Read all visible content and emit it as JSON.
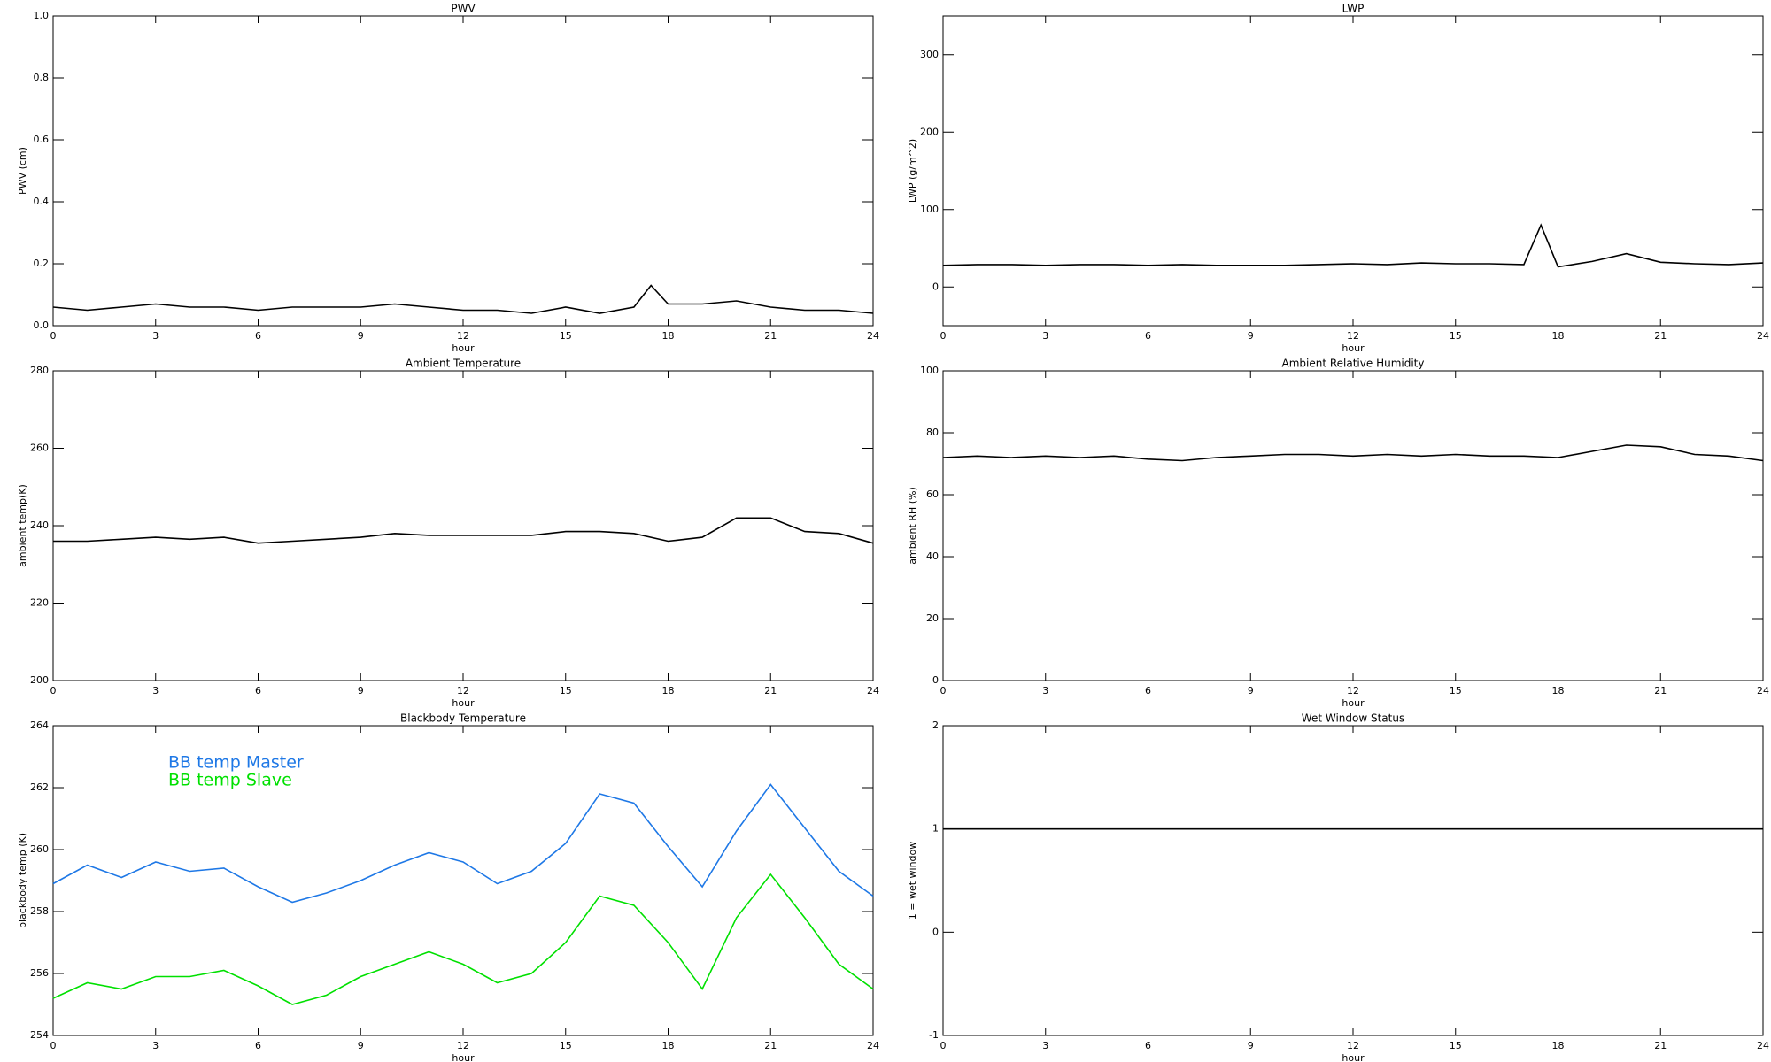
{
  "chart_data": [
    {
      "type": "line",
      "title": "PWV",
      "xlabel": "hour",
      "ylabel": "PWV (cm)",
      "x": [
        0,
        1,
        2,
        3,
        4,
        5,
        6,
        7,
        8,
        9,
        10,
        11,
        12,
        13,
        14,
        15,
        16,
        17,
        17.5,
        18,
        19,
        20,
        21,
        22,
        23,
        24
      ],
      "series": [
        {
          "color": "#000000",
          "values": [
            0.06,
            0.05,
            0.06,
            0.07,
            0.06,
            0.06,
            0.05,
            0.06,
            0.06,
            0.06,
            0.07,
            0.06,
            0.05,
            0.05,
            0.04,
            0.06,
            0.04,
            0.06,
            0.13,
            0.07,
            0.07,
            0.08,
            0.06,
            0.05,
            0.05,
            0.04
          ]
        }
      ],
      "xlim": [
        0,
        24
      ],
      "xticks": [
        0,
        3,
        6,
        9,
        12,
        15,
        18,
        21,
        24
      ],
      "ylim": [
        0,
        1
      ],
      "yticks": [
        {
          "value": 0,
          "label": "0.0"
        },
        0.2,
        0.4,
        0.6,
        0.8,
        {
          "value": 1,
          "label": "1.0"
        }
      ]
    },
    {
      "type": "line",
      "title": "LWP",
      "xlabel": "hour",
      "ylabel": "LWP (g/m^2)",
      "x": [
        0,
        1,
        2,
        3,
        4,
        5,
        6,
        7,
        8,
        9,
        10,
        11,
        12,
        13,
        14,
        15,
        16,
        17,
        17.5,
        18,
        19,
        20,
        21,
        22,
        23,
        24
      ],
      "series": [
        {
          "color": "#000000",
          "values": [
            28,
            29,
            29,
            28,
            29,
            29,
            28,
            29,
            28,
            28,
            28,
            29,
            30,
            29,
            31,
            30,
            30,
            29,
            80,
            26,
            33,
            43,
            32,
            30,
            29,
            31
          ]
        }
      ],
      "xlim": [
        0,
        24
      ],
      "xticks": [
        0,
        3,
        6,
        9,
        12,
        15,
        18,
        21,
        24
      ],
      "ylim": [
        -50,
        350
      ],
      "yticks": [
        0,
        100,
        200,
        300
      ]
    },
    {
      "type": "line",
      "title": "Ambient Temperature",
      "xlabel": "hour",
      "ylabel": "ambient temp(K)",
      "x": [
        0,
        1,
        2,
        3,
        4,
        5,
        6,
        7,
        8,
        9,
        10,
        11,
        12,
        13,
        14,
        15,
        16,
        17,
        18,
        19,
        20,
        21,
        22,
        23,
        24
      ],
      "series": [
        {
          "color": "#000000",
          "values": [
            236,
            236,
            236.5,
            237,
            236.5,
            237,
            235.5,
            236,
            236.5,
            237,
            238,
            237.5,
            237.5,
            237.5,
            237.5,
            238.5,
            238.5,
            238,
            236,
            237,
            242,
            242,
            238.5,
            238,
            235.5
          ]
        }
      ],
      "xlim": [
        0,
        24
      ],
      "xticks": [
        0,
        3,
        6,
        9,
        12,
        15,
        18,
        21,
        24
      ],
      "ylim": [
        200,
        280
      ],
      "yticks": [
        200,
        220,
        240,
        260,
        280
      ]
    },
    {
      "type": "line",
      "title": "Ambient Relative Humidity",
      "xlabel": "hour",
      "ylabel": "ambient RH (%)",
      "x": [
        0,
        1,
        2,
        3,
        4,
        5,
        6,
        7,
        8,
        9,
        10,
        11,
        12,
        13,
        14,
        15,
        16,
        17,
        18,
        19,
        20,
        21,
        22,
        23,
        24
      ],
      "series": [
        {
          "color": "#000000",
          "values": [
            72,
            72.5,
            72,
            72.5,
            72,
            72.5,
            71.5,
            71,
            72,
            72.5,
            73,
            73,
            72.5,
            73,
            72.5,
            73,
            72.5,
            72.5,
            72,
            74,
            76,
            75.5,
            73,
            72.5,
            71
          ]
        }
      ],
      "xlim": [
        0,
        24
      ],
      "xticks": [
        0,
        3,
        6,
        9,
        12,
        15,
        18,
        21,
        24
      ],
      "ylim": [
        0,
        100
      ],
      "yticks": [
        0,
        20,
        40,
        60,
        80,
        100
      ]
    },
    {
      "type": "line",
      "title": "Blackbody Temperature",
      "xlabel": "hour",
      "ylabel": "blackbody temp (K)",
      "x": [
        0,
        1,
        2,
        3,
        4,
        5,
        6,
        7,
        8,
        9,
        10,
        11,
        12,
        13,
        14,
        15,
        16,
        17,
        18,
        19,
        20,
        21,
        22,
        23,
        24
      ],
      "series": [
        {
          "name": "BB temp Master",
          "color": "#1e78e6",
          "values": [
            258.9,
            259.5,
            259.1,
            259.6,
            259.3,
            259.4,
            258.8,
            258.3,
            258.6,
            259.0,
            259.5,
            259.9,
            259.6,
            258.9,
            259.3,
            260.2,
            261.8,
            261.5,
            260.1,
            258.8,
            260.6,
            262.1,
            260.7,
            259.3,
            258.5
          ]
        },
        {
          "name": "BB temp Slave",
          "color": "#00e000",
          "values": [
            255.2,
            255.7,
            255.5,
            255.9,
            255.9,
            256.1,
            255.6,
            255.0,
            255.3,
            255.9,
            256.3,
            256.7,
            256.3,
            255.7,
            256.0,
            257.0,
            258.5,
            258.2,
            257.0,
            255.5,
            257.8,
            259.2,
            257.8,
            256.3,
            255.5
          ]
        }
      ],
      "legend": "upper left",
      "xlim": [
        0,
        24
      ],
      "xticks": [
        0,
        3,
        6,
        9,
        12,
        15,
        18,
        21,
        24
      ],
      "ylim": [
        254,
        264
      ],
      "yticks": [
        254,
        256,
        258,
        260,
        262,
        264
      ]
    },
    {
      "type": "line",
      "title": "Wet Window Status",
      "xlabel": "hour",
      "ylabel": "1 = wet window",
      "x": [
        0,
        24
      ],
      "series": [
        {
          "color": "#000000",
          "values": [
            1,
            1
          ]
        }
      ],
      "xlim": [
        0,
        24
      ],
      "xticks": [
        0,
        3,
        6,
        9,
        12,
        15,
        18,
        21,
        24
      ],
      "ylim": [
        -1,
        2
      ],
      "yticks": [
        -1,
        0,
        1,
        2
      ]
    }
  ]
}
